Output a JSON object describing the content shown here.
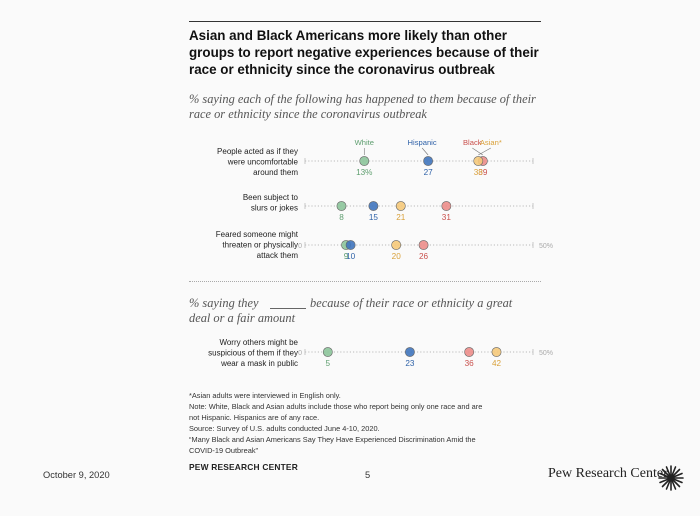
{
  "title": "Asian and Black Americans more likely than other groups to report negative experiences because of their race or ethnicity since the coronavirus outbreak",
  "subtitle_1": "% saying each of the following has happened to them because of their race or ethnicity since the coronavirus outbreak",
  "subtitle_2_pre": "% saying they",
  "subtitle_2_post": "because of their race or ethnicity a great",
  "subtitle_2_line2": "deal or a fair amount",
  "notes": [
    "*Asian adults were interviewed in English only.",
    "Note: White, Black and Asian adults include those who report being only one race and are",
    "not Hispanic. Hispanics are of any race.",
    "Source: Survey of U.S. adults conducted June 4-10, 2020.",
    "“Many Black and Asian Americans Say They Have Experienced Discrimination Amid the",
    "COVID-19 Outbreak”"
  ],
  "source_label": "PEW RESEARCH CENTER",
  "footer": {
    "date": "October 9, 2020",
    "page": "5",
    "brand": "Pew Research Center"
  },
  "colors": {
    "White": "#8cc49a",
    "Hispanic": "#3f74bd",
    "Black": "#ec8d8a",
    "Asian": "#f5c97a",
    "axis": "#bbbbbb",
    "label_white": "#5e9e6f",
    "label_hispanic": "#2f62a8",
    "label_black": "#c9504c",
    "label_asian": "#d9a13a"
  },
  "chart_data": {
    "type": "dot_plot",
    "xlim": [
      0,
      50
    ],
    "axis_labels": {
      "min": "0",
      "max": "50%"
    },
    "legend": [
      "White",
      "Hispanic",
      "Black",
      "Asian*"
    ],
    "panels": [
      {
        "rows": [
          {
            "label": [
              "People acted as if they",
              "were uncomfortable",
              "around them"
            ],
            "values": {
              "White": 13,
              "Hispanic": 27,
              "Black": 39,
              "Asian": 38
            },
            "value_labels": {
              "White": "13%",
              "Hispanic": "27",
              "Asian": "38",
              "Black": "39"
            }
          },
          {
            "label": [
              "Been subject to",
              "slurs or jokes"
            ],
            "values": {
              "White": 8,
              "Hispanic": 15,
              "Black": 31,
              "Asian": 21
            },
            "value_labels": {
              "White": "8",
              "Hispanic": "15",
              "Asian": "21",
              "Black": "31"
            }
          },
          {
            "label": [
              "Feared someone might",
              "threaten or physically",
              "attack them"
            ],
            "values": {
              "White": 9,
              "Hispanic": 10,
              "Black": 26,
              "Asian": 20
            },
            "value_labels": {
              "White": "9",
              "Hispanic": "10",
              "Asian": "20",
              "Black": "26"
            }
          }
        ]
      },
      {
        "rows": [
          {
            "label": [
              "Worry others might be",
              "suspicious of them if they",
              "wear a mask in public"
            ],
            "values": {
              "White": 5,
              "Hispanic": 23,
              "Black": 36,
              "Asian": 42
            },
            "value_labels": {
              "White": "5",
              "Hispanic": "23",
              "Black": "36",
              "Asian": "42"
            }
          }
        ]
      }
    ]
  }
}
